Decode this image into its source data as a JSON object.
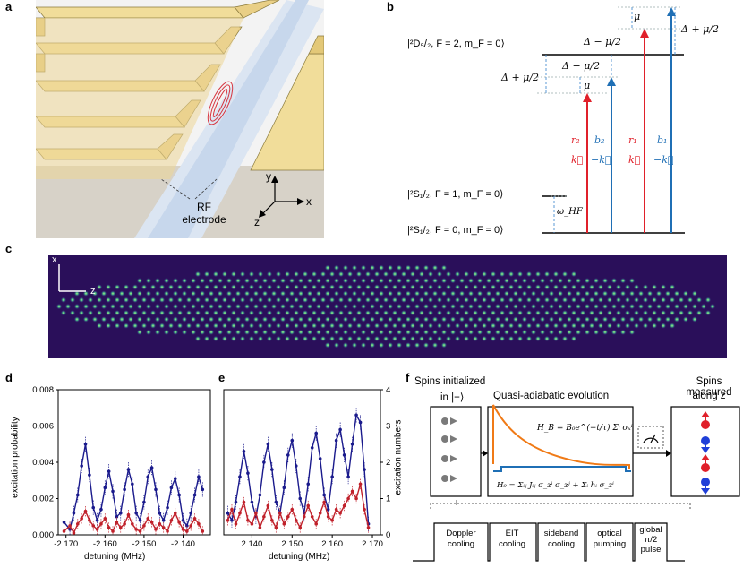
{
  "panels": {
    "a": {
      "label": "a",
      "electrode_label_line1": "RF",
      "electrode_label_line2": "electrode",
      "axis_x": "x",
      "axis_y": "y",
      "axis_z": "z"
    },
    "b": {
      "label": "b",
      "level_D": "|²D₅/₂, F = 2, m_F = 0⟩",
      "level_S1": "|²S₁/₂, F = 1, m_F = 0⟩",
      "level_S0": "|²S₁/₂, F = 0, m_F = 0⟩",
      "omega_hf": "ω_HF",
      "mu": "μ",
      "delta_minus": "Δ − μ/2",
      "delta_plus": "Δ + μ/2",
      "beams": [
        {
          "name": "r₂",
          "k": "k⃗",
          "color": "#e0202a"
        },
        {
          "name": "b₂",
          "k": "−k⃗",
          "color": "#1f6fb5"
        },
        {
          "name": "r₁",
          "k": "k⃗",
          "color": "#e0202a"
        },
        {
          "name": "b₁",
          "k": "−k⃗",
          "color": "#1f6fb5"
        }
      ]
    },
    "c": {
      "label": "c",
      "axis_x": "x",
      "axis_z": "z"
    },
    "d": {
      "label": "d",
      "ylabel": "excitation probability",
      "xlabel": "detuning (MHz)"
    },
    "e": {
      "label": "e",
      "ylabel": "excitation numbers",
      "xlabel": "detuning (MHz)"
    },
    "f": {
      "label": "f",
      "box1_title_line1": "Spins initialized",
      "box1_title_line2": "in |+⟩",
      "box2_title": "Quasi-adiabatic evolution",
      "box3_title_line1": "Spins measured",
      "box3_title_line2": "along z",
      "HB": "H_B = B₀e^(−t/τ) Σᵢ σₓⁱ",
      "H0": "H₀ = Σᵢⱼ Jᵢⱼ σ_zⁱ σ_zʲ + Σᵢ hᵢ σ_zⁱ",
      "steps": [
        "Doppler cooling",
        "EIT cooling",
        "sideband cooling",
        "optical pumping",
        "global π/2 pulse"
      ],
      "step_lines": [
        [
          "Doppler",
          "cooling"
        ],
        [
          "EIT",
          "cooling"
        ],
        [
          "sideband",
          "cooling"
        ],
        [
          "optical",
          "pumping"
        ],
        [
          "global",
          "π/2",
          "pulse"
        ]
      ]
    }
  },
  "chart_data": [
    {
      "type": "line",
      "panel": "d",
      "xlabel": "detuning (MHz)",
      "ylabel": "excitation probability",
      "xlim": [
        -2.172,
        -2.133
      ],
      "ylim": [
        0,
        0.008
      ],
      "xticks": [
        -2.17,
        -2.16,
        -2.15,
        -2.14
      ],
      "xtick_labels": [
        "-2.170",
        "-2.160",
        "-2.150",
        "-2.140"
      ],
      "yticks": [
        0,
        0.002,
        0.004,
        0.006,
        0.008
      ],
      "ytick_labels": [
        "0.000",
        "0.002",
        "0.004",
        "0.006",
        "0.008"
      ],
      "series": [
        {
          "color": "#1a1a8c",
          "x": [
            -2.1705,
            -2.169,
            -2.168,
            -2.167,
            -2.166,
            -2.165,
            -2.164,
            -2.163,
            -2.162,
            -2.161,
            -2.16,
            -2.159,
            -2.158,
            -2.157,
            -2.156,
            -2.155,
            -2.154,
            -2.153,
            -2.152,
            -2.151,
            -2.15,
            -2.149,
            -2.148,
            -2.147,
            -2.146,
            -2.145,
            -2.144,
            -2.143,
            -2.142,
            -2.141,
            -2.14,
            -2.139,
            -2.138,
            -2.137,
            -2.136,
            -2.135
          ],
          "y": [
            0.0007,
            0.0003,
            0.0012,
            0.0022,
            0.0038,
            0.005,
            0.0033,
            0.0015,
            0.0008,
            0.0014,
            0.0026,
            0.0035,
            0.0024,
            0.001,
            0.0012,
            0.0025,
            0.0036,
            0.0028,
            0.0012,
            0.0008,
            0.0018,
            0.0032,
            0.0037,
            0.0025,
            0.0012,
            0.0008,
            0.0015,
            0.0026,
            0.0031,
            0.0022,
            0.0008,
            0.0005,
            0.0012,
            0.0022,
            0.0032,
            0.0025
          ]
        },
        {
          "color": "#c0202a",
          "x": [
            -2.1705,
            -2.169,
            -2.168,
            -2.167,
            -2.166,
            -2.165,
            -2.164,
            -2.163,
            -2.162,
            -2.161,
            -2.16,
            -2.159,
            -2.158,
            -2.157,
            -2.156,
            -2.155,
            -2.154,
            -2.153,
            -2.152,
            -2.151,
            -2.15,
            -2.149,
            -2.148,
            -2.147,
            -2.146,
            -2.145,
            -2.144,
            -2.143,
            -2.142,
            -2.141,
            -2.14,
            -2.139,
            -2.138,
            -2.137,
            -2.136,
            -2.135
          ],
          "y": [
            0.0002,
            0.0005,
            0.0001,
            0.0006,
            0.0009,
            0.0013,
            0.0008,
            0.0005,
            0.0003,
            0.0006,
            0.0009,
            0.0004,
            0.0002,
            0.0007,
            0.0004,
            0.0006,
            0.0011,
            0.0006,
            0.0003,
            0.0002,
            0.0005,
            0.0009,
            0.0007,
            0.0003,
            0.0006,
            0.0004,
            0.0002,
            0.0008,
            0.0012,
            0.0007,
            0.0003,
            0.0002,
            0.0005,
            0.0009,
            0.0006,
            0.0002
          ]
        }
      ]
    },
    {
      "type": "line",
      "panel": "e",
      "xlabel": "detuning (MHz)",
      "ylabel": "excitation numbers",
      "xlim": [
        2.133,
        2.172
      ],
      "ylim": [
        0,
        4
      ],
      "xticks": [
        2.14,
        2.15,
        2.16,
        2.17
      ],
      "xtick_labels": [
        "2.140",
        "2.150",
        "2.160",
        "2.170"
      ],
      "yticks": [
        0,
        1,
        2,
        3,
        4
      ],
      "ytick_labels": [
        "0",
        "1",
        "2",
        "3",
        "4"
      ],
      "series": [
        {
          "color": "#1a1a8c",
          "x": [
            2.134,
            2.135,
            2.136,
            2.137,
            2.138,
            2.139,
            2.14,
            2.141,
            2.142,
            2.143,
            2.144,
            2.145,
            2.146,
            2.147,
            2.148,
            2.149,
            2.15,
            2.151,
            2.152,
            2.153,
            2.154,
            2.155,
            2.156,
            2.157,
            2.158,
            2.159,
            2.16,
            2.161,
            2.162,
            2.163,
            2.164,
            2.165,
            2.166,
            2.167,
            2.168,
            2.169
          ],
          "y": [
            0.6,
            0.4,
            0.9,
            1.6,
            2.3,
            1.7,
            0.9,
            0.5,
            1.1,
            2.0,
            2.5,
            1.8,
            0.9,
            0.6,
            1.3,
            2.2,
            2.6,
            1.9,
            1.0,
            0.6,
            1.4,
            2.4,
            2.8,
            2.1,
            1.1,
            0.7,
            1.6,
            2.6,
            2.9,
            2.2,
            1.6,
            2.5,
            3.3,
            3.1,
            1.8,
            0.3
          ]
        },
        {
          "color": "#c0202a",
          "x": [
            2.134,
            2.135,
            2.136,
            2.137,
            2.138,
            2.139,
            2.14,
            2.141,
            2.142,
            2.143,
            2.144,
            2.145,
            2.146,
            2.147,
            2.148,
            2.149,
            2.15,
            2.151,
            2.152,
            2.153,
            2.154,
            2.155,
            2.156,
            2.157,
            2.158,
            2.159,
            2.16,
            2.161,
            2.162,
            2.163,
            2.164,
            2.165,
            2.166,
            2.167,
            2.168,
            2.169
          ],
          "y": [
            0.4,
            0.7,
            0.3,
            0.6,
            0.9,
            0.4,
            0.3,
            0.6,
            0.2,
            0.5,
            0.8,
            0.4,
            0.2,
            0.6,
            0.3,
            0.5,
            0.7,
            0.4,
            0.2,
            0.5,
            0.8,
            0.5,
            0.3,
            0.6,
            0.9,
            0.5,
            0.4,
            0.7,
            0.6,
            0.8,
            1.0,
            1.2,
            1.0,
            1.4,
            0.7,
            0.2
          ]
        }
      ]
    }
  ]
}
